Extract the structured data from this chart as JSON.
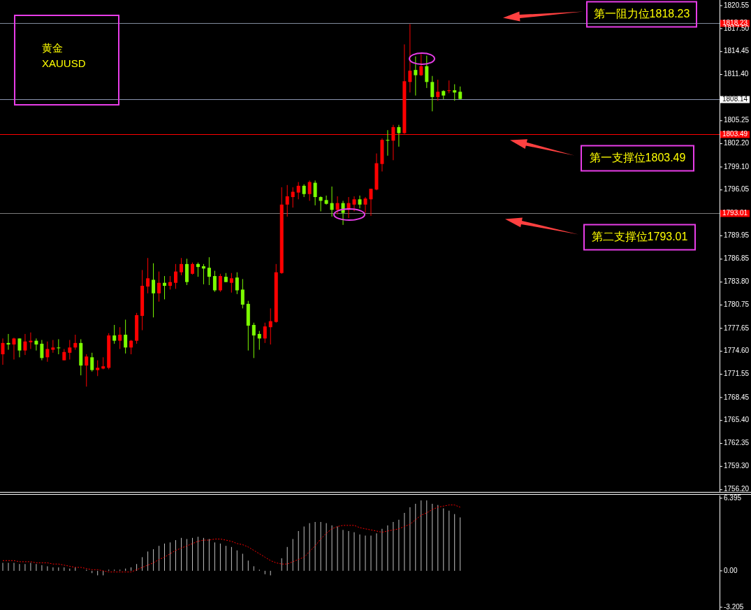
{
  "chart_data": [
    {
      "type": "candlestick",
      "title": "黄金",
      "subtitle": "XAUUSD",
      "categories": [
        null,
        null,
        null,
        null,
        null,
        null,
        null,
        null,
        null,
        null,
        null,
        null,
        null,
        null,
        null,
        null,
        null,
        null,
        null,
        null,
        null,
        null,
        null,
        null,
        null,
        null,
        null,
        null,
        null,
        null,
        null,
        null,
        null,
        null,
        null,
        null,
        null,
        null,
        null,
        null,
        null,
        null,
        null,
        null,
        null,
        null,
        null,
        null,
        null,
        null,
        null,
        null,
        null,
        null,
        null,
        null,
        null,
        null,
        null,
        null,
        null,
        null,
        null,
        null,
        null,
        null,
        null,
        null,
        null,
        null,
        null,
        null,
        null,
        null,
        null,
        null,
        null,
        null,
        null,
        null,
        null,
        null,
        null,
        null,
        null,
        null,
        null,
        null,
        null,
        null,
        null,
        null,
        null,
        null,
        null,
        null,
        null,
        null,
        null,
        null,
        null,
        null,
        null,
        null,
        null,
        null,
        null,
        null,
        null,
        null,
        null,
        null,
        null,
        null,
        null,
        null,
        null,
        null,
        null,
        null,
        null,
        null,
        null,
        null,
        null,
        null,
        null,
        null,
        null
      ],
      "ohlc": [
        [
          1774.2,
          1776.3,
          1772.8,
          1775.7
        ],
        [
          1775.7,
          1776.9,
          1774.8,
          1775.5
        ],
        [
          1775.5,
          1776.4,
          1773.5,
          1776.3
        ],
        [
          1776.3,
          1776.3,
          1773.8,
          1774.7
        ],
        [
          1774.7,
          1776.9,
          1774.1,
          1775.9
        ],
        [
          1775.8,
          1777.1,
          1774.9,
          1776.0
        ],
        [
          1776.0,
          1776.3,
          1774.7,
          1775.5
        ],
        [
          1775.6,
          1776.1,
          1773.4,
          1773.7
        ],
        [
          1773.8,
          1775.9,
          1773.2,
          1774.9
        ],
        [
          1774.8,
          1776.1,
          1774.4,
          1775.1
        ],
        [
          1775.1,
          1776.2,
          1774.2,
          1775.0
        ],
        [
          1773.4,
          1774.9,
          1773.4,
          1774.5
        ],
        [
          1774.4,
          1776.1,
          1773.5,
          1775.1
        ],
        [
          1775.1,
          1776.8,
          1774.8,
          1775.7
        ],
        [
          1775.7,
          1776.2,
          1771.4,
          1772.7
        ],
        [
          1772.7,
          1774.2,
          1769.9,
          1773.9
        ],
        [
          1773.8,
          1774.4,
          1771.9,
          1772.1
        ],
        [
          1772.1,
          1773.4,
          1771.3,
          1772.4
        ],
        [
          1772.3,
          1773.8,
          1772.2,
          1772.6
        ],
        [
          1772.4,
          1777.0,
          1772.2,
          1776.7
        ],
        [
          1776.7,
          1778.1,
          1775.6,
          1776.0
        ],
        [
          1776.0,
          1777.8,
          1774.9,
          1776.8
        ],
        [
          1776.8,
          1778.8,
          1774.3,
          1775.1
        ],
        [
          1775.1,
          1776.1,
          1774.2,
          1776.0
        ],
        [
          1776.0,
          1779.7,
          1775.6,
          1779.4
        ],
        [
          1779.3,
          1785.4,
          1777.4,
          1783.3
        ],
        [
          1783.2,
          1787.0,
          1782.3,
          1784.3
        ],
        [
          1784.1,
          1786.3,
          1779.1,
          1782.3
        ],
        [
          1782.3,
          1785.2,
          1781.2,
          1783.7
        ],
        [
          1783.7,
          1784.6,
          1781.5,
          1783.3
        ],
        [
          1783.3,
          1784.6,
          1782.8,
          1783.8
        ],
        [
          1783.7,
          1786.2,
          1782.9,
          1785.2
        ],
        [
          1785.1,
          1787.0,
          1784.7,
          1786.2
        ],
        [
          1786.2,
          1786.9,
          1783.4,
          1783.8
        ],
        [
          1784.9,
          1786.4,
          1784.8,
          1786.2
        ],
        [
          1786.2,
          1786.4,
          1784.5,
          1785.8
        ],
        [
          1785.9,
          1786.2,
          1783.5,
          1785.6
        ],
        [
          1785.7,
          1787.1,
          1783.4,
          1784.5
        ],
        [
          1784.6,
          1785.3,
          1782.5,
          1782.7
        ],
        [
          1782.7,
          1784.9,
          1782.5,
          1784.6
        ],
        [
          1784.5,
          1785.0,
          1783.8,
          1783.8
        ],
        [
          1783.7,
          1785.0,
          1782.4,
          1784.3
        ],
        [
          1784.4,
          1785.1,
          1782.2,
          1782.7
        ],
        [
          1782.8,
          1784.2,
          1780.3,
          1780.8
        ],
        [
          1780.9,
          1781.3,
          1774.7,
          1778.0
        ],
        [
          1778.1,
          1778.4,
          1773.7,
          1776.7
        ],
        [
          1776.9,
          1777.3,
          1774.8,
          1776.3
        ],
        [
          1776.3,
          1778.4,
          1775.7,
          1777.9
        ],
        [
          1777.8,
          1780.3,
          1775.5,
          1778.6
        ],
        [
          1778.5,
          1786.2,
          1778.4,
          1785.1
        ],
        [
          1785.0,
          1796.4,
          1784.9,
          1794.1
        ],
        [
          1794.1,
          1796.7,
          1792.5,
          1795.2
        ],
        [
          1795.1,
          1796.4,
          1793.7,
          1795.8
        ],
        [
          1795.7,
          1797.1,
          1794.8,
          1796.6
        ],
        [
          1796.6,
          1796.8,
          1795.1,
          1795.5
        ],
        [
          1795.5,
          1797.3,
          1794.6,
          1797.1
        ],
        [
          1797.0,
          1797.3,
          1794.0,
          1795.1
        ],
        [
          1795.1,
          1795.2,
          1793.2,
          1794.6
        ],
        [
          1794.7,
          1795.3,
          1794.1,
          1794.2
        ],
        [
          1794.3,
          1796.5,
          1792.5,
          1793.4
        ],
        [
          1793.4,
          1795.2,
          1792.8,
          1794.3
        ],
        [
          1794.3,
          1794.6,
          1791.4,
          1793.0
        ],
        [
          1793.4,
          1795.1,
          1792.3,
          1794.3
        ],
        [
          1794.1,
          1795.2,
          1793.2,
          1794.8
        ],
        [
          1794.8,
          1795.3,
          1793.6,
          1794.1
        ],
        [
          1794.1,
          1795.1,
          1793.0,
          1794.9
        ],
        [
          1794.8,
          1796.2,
          1792.6,
          1796.2
        ],
        [
          1796.1,
          1800.9,
          1796.0,
          1799.6
        ],
        [
          1799.5,
          1802.9,
          1798.5,
          1802.7
        ],
        [
          1802.7,
          1804.0,
          1800.6,
          1802.6
        ],
        [
          1802.6,
          1804.7,
          1800.0,
          1804.4
        ],
        [
          1804.4,
          1804.7,
          1801.8,
          1803.6
        ],
        [
          1803.6,
          1815.4,
          1803.5,
          1810.5
        ],
        [
          1810.4,
          1818.1,
          1809.0,
          1811.9
        ],
        [
          1812.0,
          1813.8,
          1808.6,
          1811.3
        ],
        [
          1811.3,
          1814.1,
          1811.2,
          1812.5
        ],
        [
          1812.5,
          1813.9,
          1809.6,
          1810.4
        ],
        [
          1810.4,
          1811.2,
          1806.5,
          1808.4
        ],
        [
          1808.4,
          1810.7,
          1807.9,
          1809.1
        ],
        [
          1809.2,
          1809.3,
          1808.1,
          1808.6
        ],
        [
          1809.2,
          1810.6,
          1808.9,
          1809.3
        ],
        [
          1809.3,
          1810.1,
          1807.9,
          1809.0
        ],
        [
          1809.1,
          1809.8,
          1808.1,
          1808.14
        ],
        null,
        null,
        null,
        null,
        null,
        null,
        null,
        null,
        null,
        null,
        null,
        null,
        null,
        null,
        null,
        null,
        null,
        null,
        null,
        null,
        null,
        null,
        null,
        null,
        null,
        null,
        null,
        null,
        null,
        null,
        null,
        null,
        null,
        null,
        null,
        null,
        null,
        null,
        null,
        null,
        null,
        null,
        null,
        null,
        null,
        null
      ],
      "colors": [
        "#ff0000",
        "#7cfc00",
        "#ff0000",
        "#7cfc00",
        "#ff0000",
        "#ff0000",
        "#7cfc00",
        "#7cfc00",
        "#ff0000",
        "#ff0000",
        "#7cfc00",
        "#ff0000",
        "#ff0000",
        "#ff0000",
        "#7cfc00",
        "#ff0000",
        "#7cfc00",
        "#ff0000",
        "#ff0000",
        "#ff0000",
        "#7cfc00",
        "#ff0000",
        "#7cfc00",
        "#ff0000",
        "#ff0000",
        "#ff0000",
        "#ff0000",
        "#7cfc00",
        "#ff0000",
        "#7cfc00",
        "#ff0000",
        "#ff0000",
        "#ff0000",
        "#7cfc00",
        "#ff0000",
        "#7cfc00",
        "#7cfc00",
        "#7cfc00",
        "#7cfc00",
        "#ff0000",
        "#7cfc00",
        "#ff0000",
        "#7cfc00",
        "#7cfc00",
        "#7cfc00",
        "#7cfc00",
        "#7cfc00",
        "#ff0000",
        "#ff0000",
        "#ff0000",
        "#ff0000",
        "#ff0000",
        "#ff0000",
        "#ff0000",
        "#7cfc00",
        "#ff0000",
        "#7cfc00",
        "#7cfc00",
        "#7cfc00",
        "#7cfc00",
        "#ff0000",
        "#7cfc00",
        "#ff0000",
        "#ff0000",
        "#7cfc00",
        "#ff0000",
        "#ff0000",
        "#ff0000",
        "#ff0000",
        "#7cfc00",
        "#ff0000",
        "#7cfc00",
        "#ff0000",
        "#ff0000",
        "#7cfc00",
        "#ff0000",
        "#7cfc00",
        "#7cfc00",
        "#ff0000",
        "#7cfc00",
        "#ff0000",
        "#7cfc00",
        "#7cfc00",
        null,
        null,
        null,
        null,
        null,
        null,
        null,
        null,
        null,
        null,
        null,
        null,
        null,
        null,
        null,
        null,
        null,
        null,
        null,
        null,
        null,
        null,
        null,
        null,
        null,
        null,
        null,
        null,
        null,
        null,
        null,
        null,
        null,
        null,
        null,
        null,
        null,
        null,
        null,
        null,
        null,
        null,
        null,
        null,
        null,
        null
      ],
      "ylim": [
        1755.9,
        1821.3
      ],
      "yticks": [
        1820.55,
        {
          "value": 1817.5,
          "label": "1817.50"
        },
        1814.45,
        {
          "value": 1811.4,
          "label": "1811.40"
        },
        1805.25,
        {
          "value": 1802.2,
          "label": "1802.20"
        },
        {
          "value": 1799.1,
          "label": "1799.10"
        },
        1796.05,
        1789.95,
        1786.85,
        {
          "value": 1783.8,
          "label": "1783.80"
        },
        1780.75,
        1777.65,
        {
          "value": 1774.6,
          "label": "1774.60"
        },
        1771.55,
        1768.45,
        {
          "value": 1765.4,
          "label": "1765.40"
        },
        1762.35,
        {
          "value": 1759.3,
          "label": "1759.30"
        },
        {
          "value": 1756.2,
          "label": "1756.20"
        }
      ],
      "ref_lines": [
        {
          "axis": "y",
          "value": 1818.23,
          "label": "1818.23",
          "color": "#7f8a9c"
        },
        {
          "axis": "y",
          "value": 1808.14,
          "label": "1808.14",
          "color": "#8a94b0"
        },
        {
          "axis": "y",
          "value": 1803.49,
          "label": "1803.49",
          "color": "#ff0000"
        },
        {
          "axis": "y",
          "value": 1793.01,
          "label": "1793.01",
          "color": "#7a7a7a"
        }
      ],
      "annotations": [
        {
          "text": "第一阻力位1818.23",
          "y": 1818.23
        },
        {
          "text": "第一支撑位1803.49",
          "y": 1803.49
        },
        {
          "text": "第二支撑位1793.01",
          "y": 1793.01
        }
      ],
      "tick_labels": "y",
      "grid": false
    },
    {
      "type": "bar",
      "categories": [
        null,
        null,
        null,
        null,
        null,
        null,
        null,
        null,
        null,
        null,
        null,
        null,
        null,
        null,
        null,
        null,
        null,
        null,
        null,
        null,
        null,
        null,
        null,
        null,
        null,
        null,
        null,
        null,
        null,
        null,
        null,
        null,
        null,
        null,
        null,
        null,
        null,
        null,
        null,
        null,
        null,
        null,
        null,
        null,
        null,
        null,
        null,
        null,
        null,
        null,
        null,
        null,
        null,
        null,
        null,
        null,
        null,
        null,
        null,
        null,
        null,
        null,
        null,
        null,
        null,
        null,
        null,
        null,
        null,
        null,
        null,
        null,
        null,
        null,
        null,
        null,
        null,
        null,
        null,
        null,
        null,
        null,
        null,
        null,
        null,
        null,
        null,
        null,
        null,
        null,
        null,
        null,
        null,
        null,
        null,
        null,
        null,
        null,
        null,
        null,
        null,
        null,
        null,
        null,
        null,
        null,
        null,
        null,
        null,
        null,
        null,
        null,
        null,
        null,
        null,
        null,
        null,
        null,
        null,
        null,
        null,
        null,
        null,
        null,
        null,
        null,
        null,
        null,
        null
      ],
      "series": [
        {
          "type": "bar",
          "color": "#c0c0c0",
          "values": [
            0.7,
            0.7,
            0.7,
            0.6,
            0.6,
            0.7,
            0.6,
            0.5,
            0.4,
            0.3,
            0.3,
            0.3,
            0.2,
            0.3,
            0,
            0.1,
            -0.2,
            -0.4,
            -0.4,
            0.1,
            0.1,
            0.1,
            0.2,
            0.3,
            0.6,
            1.2,
            1.7,
            1.9,
            2.2,
            2.4,
            2.5,
            2.7,
            2.9,
            2.8,
            2.9,
            3.0,
            2.9,
            2.8,
            2.5,
            2.4,
            2.2,
            2.1,
            1.8,
            1.5,
            0.9,
            0.4,
            0.1,
            -0.3,
            -0.4,
            0,
            1.1,
            2.1,
            2.8,
            3.5,
            3.9,
            4.2,
            4.3,
            4.3,
            4.2,
            4.0,
            3.9,
            3.6,
            3.5,
            3.4,
            3.2,
            3.1,
            3.1,
            3.3,
            3.7,
            4.0,
            4.3,
            4.5,
            5.1,
            5.6,
            5.9,
            6.2,
            6.2,
            5.9,
            5.8,
            5.5,
            5.3,
            5.0,
            4.7,
            null,
            null,
            null,
            null,
            null,
            null,
            null,
            null,
            null,
            null,
            null,
            null,
            null,
            null,
            null,
            null,
            null,
            null,
            null,
            null,
            null,
            null,
            null,
            null,
            null,
            null,
            null,
            null,
            null,
            null,
            null,
            null,
            null,
            null,
            null,
            null,
            null,
            null,
            null,
            null,
            null,
            null,
            null,
            null,
            null,
            null
          ]
        },
        {
          "type": "line",
          "color": "#ff0000",
          "line_style": "dotted",
          "values": [
            0.9,
            0.9,
            0.9,
            0.8,
            0.8,
            0.8,
            0.7,
            0.7,
            0.7,
            0.6,
            0.6,
            0.5,
            0.4,
            0.3,
            0.3,
            0.2,
            0.1,
            0.1,
            0,
            -0.1,
            -0.1,
            -0.1,
            -0.1,
            -0.1,
            0.1,
            0.3,
            0.5,
            0.7,
            1.0,
            1.2,
            1.5,
            1.8,
            2.0,
            2.2,
            2.4,
            2.6,
            2.7,
            2.7,
            2.8,
            2.8,
            2.7,
            2.6,
            2.4,
            2.3,
            2.1,
            1.8,
            1.5,
            1.2,
            0.9,
            0.7,
            0.6,
            0.6,
            0.8,
            1.0,
            1.2,
            1.7,
            2.2,
            2.8,
            3.3,
            3.7,
            3.9,
            4.0,
            4.0,
            4.0,
            3.8,
            3.7,
            3.6,
            3.5,
            3.4,
            3.5,
            3.6,
            3.7,
            3.9,
            4.1,
            4.5,
            4.9,
            5.1,
            5.4,
            5.6,
            5.7,
            5.8,
            5.8,
            5.6,
            null,
            null,
            null,
            null,
            null,
            null,
            null,
            null,
            null,
            null,
            null,
            null,
            null,
            null,
            null,
            null,
            null,
            null,
            null,
            null,
            null,
            null,
            null,
            null,
            null,
            null,
            null,
            null,
            null,
            null,
            null,
            null,
            null,
            null,
            null,
            null,
            null,
            null,
            null,
            null,
            null,
            null,
            null,
            null,
            null,
            null
          ]
        }
      ],
      "ylim": [
        -3.45,
        6.64
      ],
      "yticks": [
        6.395,
        {
          "value": 0,
          "label": "0.00"
        },
        -3.205
      ],
      "tick_labels": "y",
      "grid": false
    }
  ]
}
